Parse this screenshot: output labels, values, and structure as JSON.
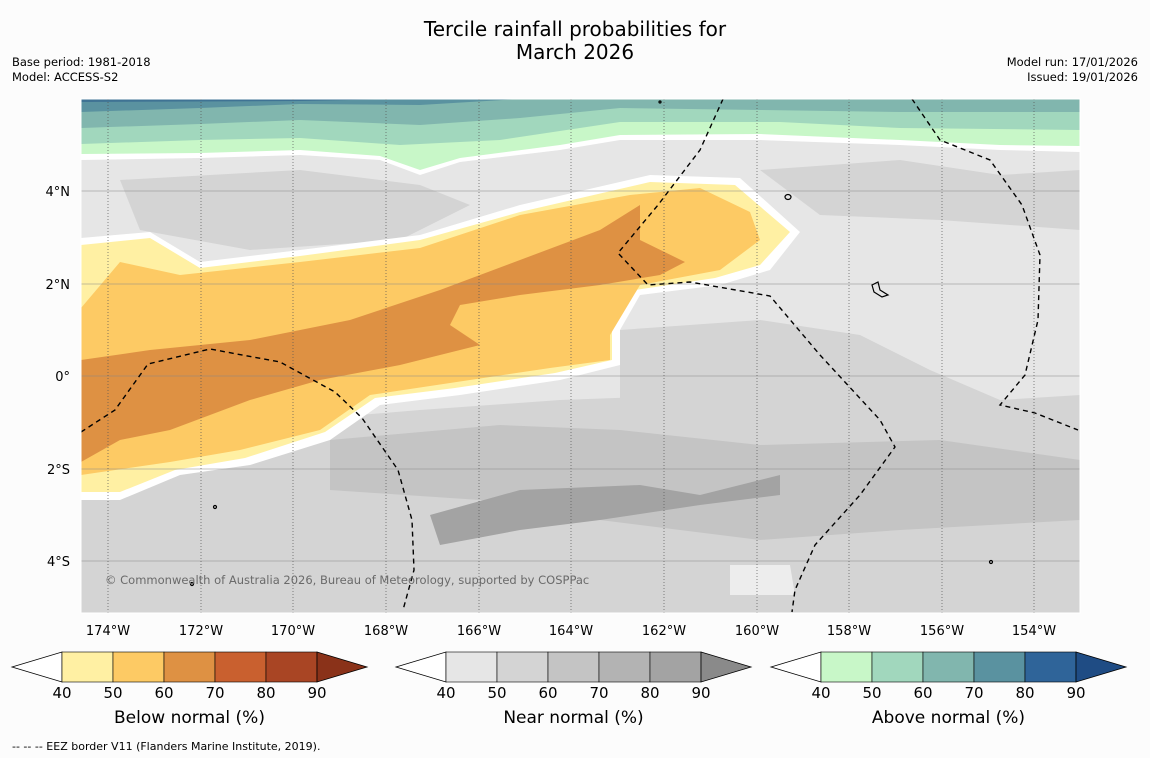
{
  "title_line1": "Tercile rainfall probabilities for",
  "title_line2": "March 2026",
  "base_period": "Base period: 1981-2018",
  "model": "Model: ACCESS-S2",
  "model_run": "Model run: 17/01/2026",
  "issued": "Issued: 19/01/2026",
  "copyright": "© Commonwealth of Australia 2026, Bureau of Meteorology, supported by COSPPac",
  "footnote": "--  --  -- EEZ border V11 (Flanders Marine Institute, 2019).",
  "lat_labels": [
    "4°N",
    "2°N",
    "0°",
    "2°S",
    "4°S"
  ],
  "lon_labels": [
    "174°W",
    "172°W",
    "170°W",
    "168°W",
    "166°W",
    "164°W",
    "162°W",
    "160°W",
    "158°W",
    "156°W",
    "154°W"
  ],
  "colorbars": [
    {
      "label": "Below normal (%)",
      "ticks": [
        "40",
        "50",
        "60",
        "70",
        "80",
        "90"
      ],
      "colors": [
        "#fff0a3",
        "#fdca64",
        "#de9143",
        "#c9602f",
        "#a94524",
        "#8a3219"
      ]
    },
    {
      "label": "Near normal (%)",
      "ticks": [
        "40",
        "50",
        "60",
        "70",
        "80",
        "90"
      ],
      "colors": [
        "#e6e6e6",
        "#d4d4d4",
        "#c4c4c4",
        "#b3b3b3",
        "#a3a3a3",
        "#8a8a8a"
      ]
    },
    {
      "label": "Above normal (%)",
      "ticks": [
        "40",
        "50",
        "60",
        "70",
        "80",
        "90"
      ],
      "colors": [
        "#c8f7c8",
        "#a1d7bd",
        "#81b6ae",
        "#5a92a0",
        "#2f6499",
        "#1f4c84"
      ]
    }
  ]
}
